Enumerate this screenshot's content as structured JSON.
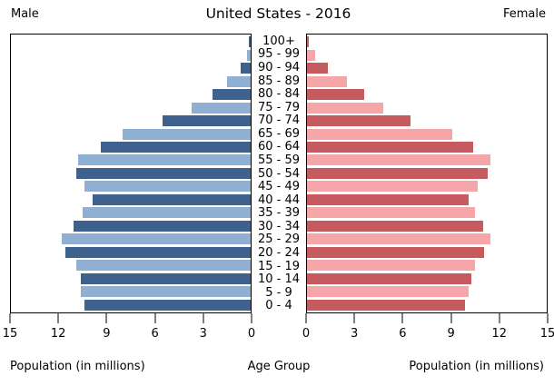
{
  "header": {
    "left_label": "Male",
    "title": "United States - 2016",
    "right_label": "Female"
  },
  "axes": {
    "left_axis_label": "Population (in millions)",
    "center_axis_label": "Age Group",
    "right_axis_label": "Population (in millions)",
    "left_ticks": [
      "15",
      "12",
      "9",
      "6",
      "3",
      "0"
    ],
    "right_ticks": [
      "0",
      "3",
      "6",
      "9",
      "12",
      "15"
    ],
    "max_per_side": 15
  },
  "colors": {
    "male_dark": "#3F618E",
    "male_light": "#90B0D3",
    "female_dark": "#C55A5F",
    "female_light": "#F4A6A9",
    "panel_border": "#000000"
  },
  "chart_data": {
    "type": "bar",
    "subtype": "population-pyramid",
    "title": "United States - 2016",
    "xlabel": "Population (in millions)",
    "ylabel": "Age Group",
    "xlim_each_side": [
      0,
      15
    ],
    "grid": false,
    "legend_position": "none",
    "categories_top_to_bottom": [
      "100+",
      "95 - 99",
      "90 - 94",
      "85 - 89",
      "80 - 84",
      "75 - 79",
      "70 - 74",
      "65 - 69",
      "60 - 64",
      "55 - 59",
      "50 - 54",
      "45 - 49",
      "40 - 44",
      "35 - 39",
      "30 - 34",
      "25 - 29",
      "20 - 24",
      "15 - 19",
      "10 - 14",
      "5 - 9",
      "0 - 4"
    ],
    "series": [
      {
        "name": "Male",
        "side": "left",
        "values": [
          0.1,
          0.2,
          0.6,
          1.5,
          2.4,
          3.7,
          5.5,
          8.0,
          9.4,
          10.8,
          10.9,
          10.4,
          9.9,
          10.5,
          11.1,
          11.8,
          11.6,
          10.9,
          10.6,
          10.6,
          10.4
        ]
      },
      {
        "name": "Female",
        "side": "right",
        "values": [
          0.1,
          0.5,
          1.3,
          2.5,
          3.6,
          4.8,
          6.5,
          9.1,
          10.4,
          11.5,
          11.3,
          10.7,
          10.1,
          10.5,
          11.0,
          11.5,
          11.1,
          10.5,
          10.3,
          10.1,
          9.9
        ]
      }
    ]
  }
}
